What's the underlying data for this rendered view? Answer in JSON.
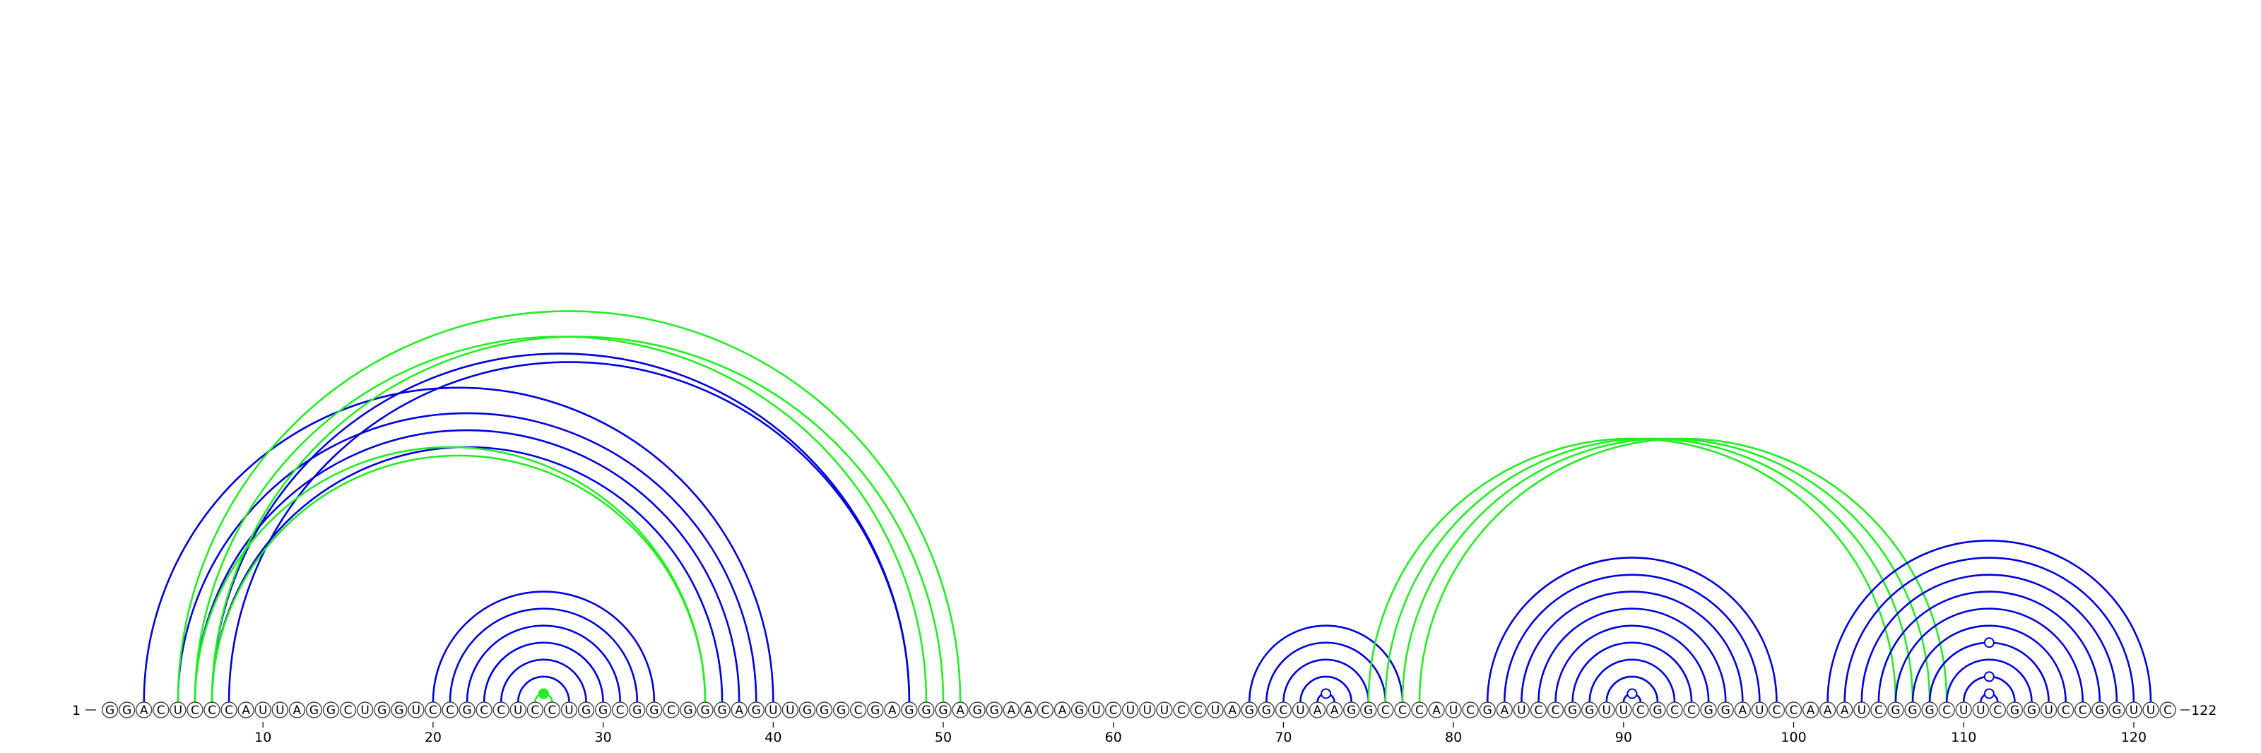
{
  "sequence": "GGACUCCCAUUAGGCUGGUCCGCCUCCUGGCGGCGGGAGUUGGGCGAGGGAGGAACAGUCUUUCCUAGGCUAAGGCCCAUCGAUCCGGUUCGCCGGAUCCAAAUCGGGCUUCGGUCCGGUUC",
  "start_label": "1",
  "end_label": "122",
  "ticks": [
    10,
    20,
    30,
    40,
    50,
    60,
    70,
    80,
    90,
    100,
    110,
    120
  ],
  "colors": {
    "blue": "#0000dd",
    "green": "#22ee22"
  },
  "arc_groups": [
    {
      "color": "blue",
      "pairs": [
        [
          3,
          40
        ],
        [
          5,
          39
        ],
        [
          6,
          38
        ],
        [
          7,
          37
        ]
      ]
    },
    {
      "color": "blue",
      "pairs": [
        [
          7,
          48
        ],
        [
          8,
          48
        ]
      ]
    },
    {
      "color": "green",
      "pairs": [
        [
          6,
          49
        ],
        [
          7,
          50
        ],
        [
          5,
          51
        ]
      ]
    },
    {
      "color": "green",
      "pairs": [
        [
          6,
          36
        ],
        [
          7,
          36
        ]
      ]
    },
    {
      "color": "blue",
      "pairs": [
        [
          20,
          33
        ],
        [
          21,
          32
        ],
        [
          22,
          31
        ],
        [
          23,
          30
        ],
        [
          24,
          29
        ],
        [
          25,
          28
        ]
      ]
    },
    {
      "color": "green",
      "pairs": [
        [
          26,
          27
        ]
      ]
    },
    {
      "color": "blue",
      "pairs": [
        [
          68,
          77
        ],
        [
          69,
          76
        ],
        [
          70,
          75
        ],
        [
          71,
          74
        ],
        [
          72,
          73
        ]
      ]
    },
    {
      "color": "green",
      "pairs": [
        [
          75,
          106
        ],
        [
          76,
          107
        ],
        [
          77,
          108
        ],
        [
          78,
          109
        ]
      ]
    },
    {
      "color": "blue",
      "pairs": [
        [
          82,
          99
        ],
        [
          83,
          98
        ],
        [
          84,
          97
        ],
        [
          85,
          96
        ],
        [
          86,
          95
        ],
        [
          87,
          94
        ],
        [
          88,
          93
        ],
        [
          89,
          92
        ],
        [
          90,
          91
        ]
      ]
    },
    {
      "color": "blue",
      "pairs": [
        [
          102,
          121
        ],
        [
          103,
          120
        ],
        [
          104,
          119
        ],
        [
          105,
          118
        ],
        [
          106,
          117
        ],
        [
          107,
          116
        ],
        [
          108,
          115
        ],
        [
          109,
          114
        ],
        [
          110,
          113
        ],
        [
          111,
          112
        ]
      ]
    }
  ],
  "loop_markers": [
    {
      "pos": 26.5,
      "level": 1,
      "fill": "green"
    },
    {
      "pos": 72.5,
      "level": 1,
      "fill": "white"
    },
    {
      "pos": 90.5,
      "level": 1,
      "fill": "white"
    },
    {
      "pos": 111.5,
      "level": 1,
      "fill": "white"
    },
    {
      "pos": 111.5,
      "level": 3,
      "fill": "white"
    },
    {
      "pos": 111.5,
      "level": 7,
      "fill": "white"
    }
  ]
}
